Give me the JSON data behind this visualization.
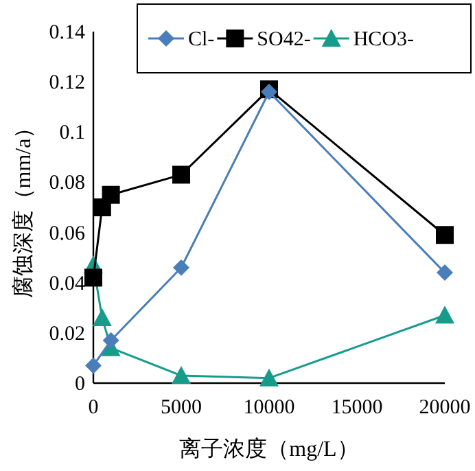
{
  "chart_data": {
    "type": "line",
    "xlabel": "离子浓度（mg/L）",
    "ylabel": "腐蚀深度（mm/a）",
    "xlim": [
      0,
      20000
    ],
    "xticks": [
      0,
      5000,
      10000,
      15000,
      20000
    ],
    "ylim": [
      0,
      0.14
    ],
    "yticks": [
      0,
      0.02,
      0.04,
      0.06,
      0.08,
      {
        "value": 0.1,
        "label": "0.1"
      },
      0.12,
      0.14
    ],
    "x": [
      0,
      500,
      1000,
      5000,
      10000,
      20000
    ],
    "series": [
      {
        "name": "Cl-",
        "color": "#4a7ebb",
        "marker": "diamond",
        "x": [
          0,
          1000,
          5000,
          10000,
          20000
        ],
        "values": [
          0.007,
          0.017,
          0.046,
          0.116,
          0.044
        ]
      },
      {
        "name": "SO42-",
        "color": "#000000",
        "marker": "square",
        "values": [
          0.042,
          0.07,
          0.075,
          0.083,
          0.117,
          0.059
        ]
      },
      {
        "name": "HCO3-",
        "color": "#179c8c",
        "marker": "triangle",
        "values": [
          0.047,
          0.026,
          0.014,
          0.003,
          0.002,
          0.027
        ]
      }
    ],
    "legend": "top right",
    "grid": false
  }
}
